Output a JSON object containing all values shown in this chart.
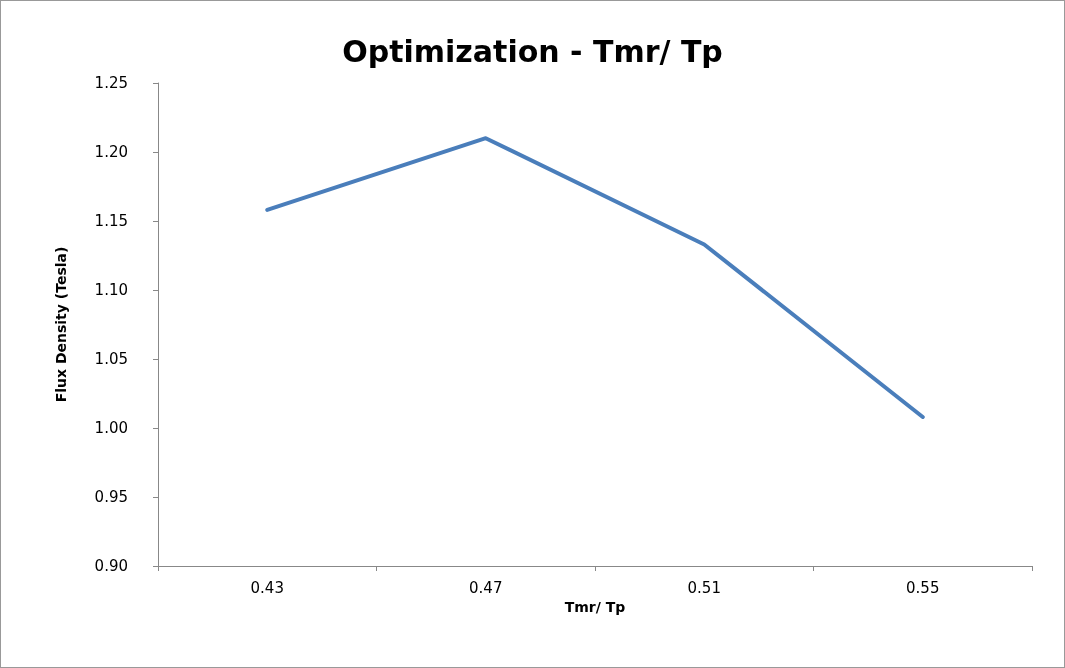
{
  "chart_data": {
    "type": "line",
    "title": "Optimization - Tmr/ Tp",
    "xlabel": "Tmr/ Tp",
    "ylabel": "Flux Density (Tesla)",
    "categories": [
      "0.43",
      "0.47",
      "0.51",
      "0.55"
    ],
    "series": [
      {
        "color": "#4a7ebb",
        "values": [
          1.158,
          1.21,
          1.133,
          1.008
        ]
      }
    ],
    "ylim": [
      0.9,
      1.25
    ],
    "yticks": [
      {
        "value": 0.9,
        "label": "0.90"
      },
      {
        "value": 0.95,
        "label": "0.95"
      },
      {
        "value": 1.0,
        "label": "1.00"
      },
      {
        "value": 1.05,
        "label": "1.05"
      },
      {
        "value": 1.1,
        "label": "1.10"
      },
      {
        "value": 1.15,
        "label": "1.15"
      },
      {
        "value": 1.2,
        "label": "1.20"
      },
      {
        "value": 1.25,
        "label": "1.25"
      }
    ],
    "grid": false,
    "marker": "none",
    "line_style": "solid"
  }
}
